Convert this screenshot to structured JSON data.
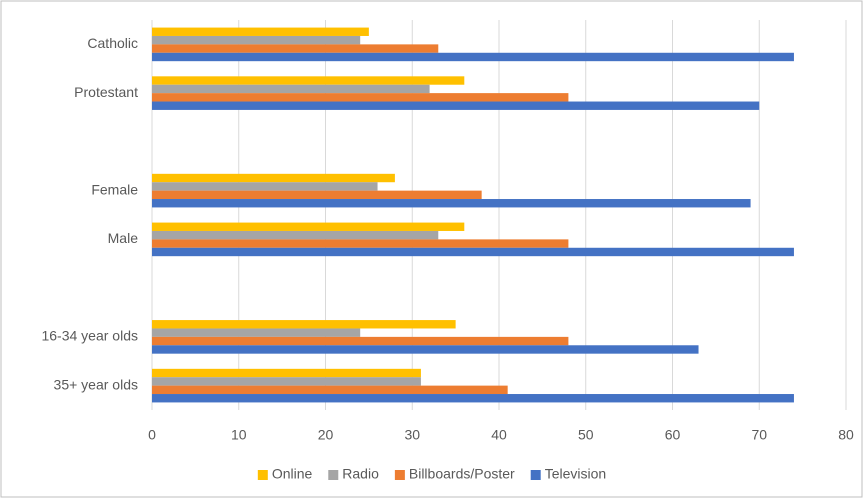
{
  "chart_data": {
    "type": "bar",
    "orientation": "horizontal",
    "categories": [
      "Catholic",
      "Protestant",
      null,
      "Female",
      "Male",
      null,
      "16-34 year olds",
      "35+ year olds"
    ],
    "series": [
      {
        "name": "Online",
        "color": "#ffc000",
        "values": [
          25,
          36,
          null,
          28,
          36,
          null,
          35,
          31
        ]
      },
      {
        "name": "Radio",
        "color": "#a5a5a5",
        "values": [
          24,
          32,
          null,
          26,
          33,
          null,
          24,
          31
        ]
      },
      {
        "name": "Billboards/Poster",
        "color": "#ed7d31",
        "values": [
          33,
          48,
          null,
          38,
          48,
          null,
          48,
          41
        ]
      },
      {
        "name": "Television",
        "color": "#4472c4",
        "values": [
          74,
          70,
          null,
          69,
          74,
          null,
          63,
          74
        ]
      }
    ],
    "xlim": [
      0,
      80
    ],
    "xticks": [
      0,
      10,
      20,
      30,
      40,
      50,
      60,
      70,
      80
    ],
    "grid": true,
    "legend": "bottom"
  }
}
